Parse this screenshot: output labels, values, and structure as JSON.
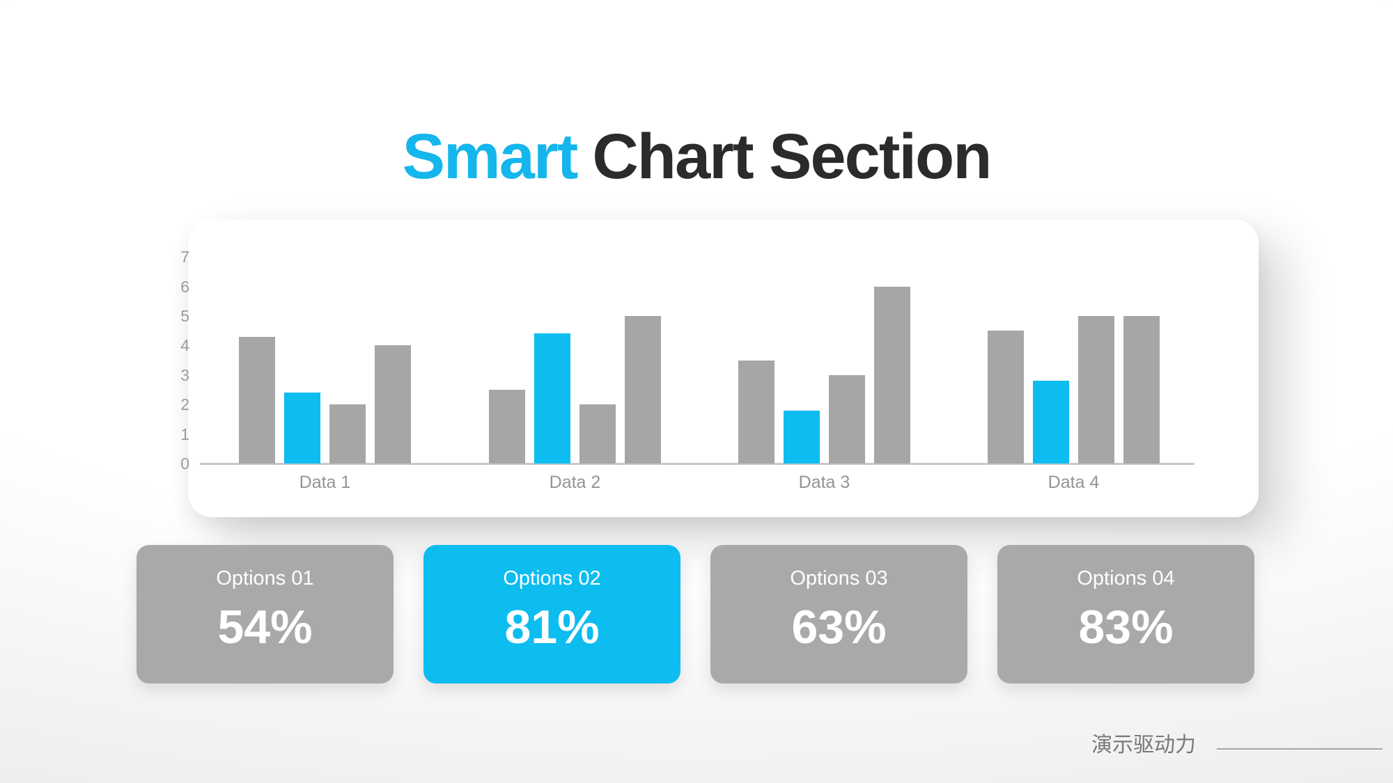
{
  "title": {
    "highlight": "Smart",
    "rest": "Chart Section"
  },
  "chart_data": {
    "type": "bar",
    "categories": [
      "Data 1",
      "Data 2",
      "Data 3",
      "Data 4"
    ],
    "series": [
      {
        "name": "series-1",
        "color": "#a6a6a6",
        "values": [
          4.3,
          2.5,
          3.5,
          4.5
        ]
      },
      {
        "name": "series-2-highlight",
        "color": "#0dbdf0",
        "values": [
          2.4,
          4.4,
          1.8,
          2.8
        ]
      },
      {
        "name": "series-3",
        "color": "#a6a6a6",
        "values": [
          2.0,
          2.0,
          3.0,
          5.0
        ]
      },
      {
        "name": "series-4",
        "color": "#a6a6a6",
        "values": [
          4.0,
          5.0,
          6.0,
          5.0
        ]
      }
    ],
    "title": "",
    "xlabel": "",
    "ylabel": "",
    "ylim": [
      0,
      7
    ],
    "yticks": [
      0,
      1,
      2,
      3,
      4,
      5,
      6,
      7
    ],
    "grid": false,
    "legend": false
  },
  "options_cards": [
    {
      "label": "Options 01",
      "value": "54%",
      "highlighted": false
    },
    {
      "label": "Options 02",
      "value": "81%",
      "highlighted": true
    },
    {
      "label": "Options 03",
      "value": "63%",
      "highlighted": false
    },
    {
      "label": "Options 04",
      "value": "83%",
      "highlighted": false
    }
  ],
  "footer": {
    "brand_text": "演示驱动力"
  },
  "colors": {
    "accent": "#0dbdf0",
    "accent_title": "#14b6ec",
    "bar_gray": "#a6a6a6",
    "card_gray": "#a9a9a9",
    "title_dark": "#2b2b2b",
    "axis_text": "#9b9b9b",
    "axis_line": "#c9c9c9",
    "footer_text": "#787878"
  }
}
